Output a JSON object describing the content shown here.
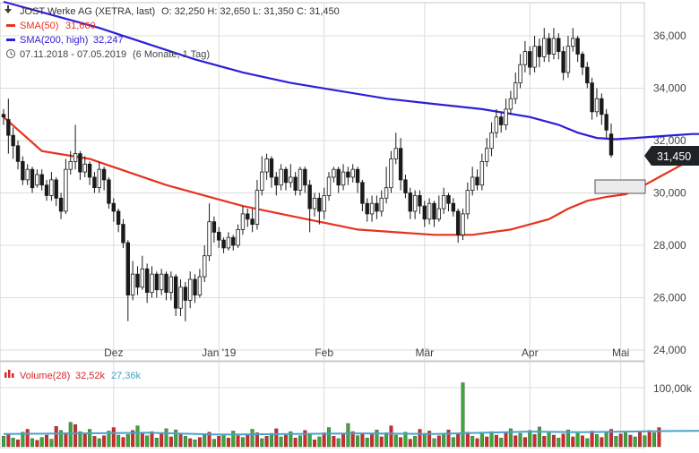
{
  "header": {
    "title": "JOST Werke AG (XETRA, last)",
    "ohlc": "O: 32,250   H: 32,650   L: 31,350   C: 31,450",
    "sma50_label": "SMA(50)",
    "sma50_value": "31,660",
    "sma200_label": "SMA(200, high)",
    "sma200_value": "32,247",
    "range": "07.11.2018 - 07.05.2019",
    "range_note": "(6 Monate, 1 Tag)"
  },
  "colors": {
    "up": "#1a1a1a",
    "down": "#1a1a1a",
    "sma50": "#e8321e",
    "sma200": "#2e1ed8",
    "volume_up": "#3aa832",
    "volume_down": "#d62828",
    "volume_avg": "#4aa3c8",
    "grid": "#dcdcdc",
    "last_badge": "#1f2326"
  },
  "price_panel": {
    "y_ticks": [
      "36,000",
      "34,000",
      "32,000",
      "30,000",
      "28,000",
      "26,000",
      "24,000"
    ],
    "x_ticks": [
      "Dez",
      "Jan '19",
      "Feb",
      "Mär",
      "Apr",
      "Mai"
    ],
    "last_price": "31,450"
  },
  "volume_panel": {
    "label": "Volume(28)",
    "value": "32,52k",
    "avg_value": "27,36k",
    "y_tick": "100,00k"
  },
  "chart_data": {
    "type": "candlestick",
    "ylim": [
      24,
      37
    ],
    "y_ticks": [
      24,
      26,
      28,
      30,
      32,
      34,
      36
    ],
    "x_ticks": [
      "Dez",
      "Jan '19",
      "Feb",
      "Mär",
      "Apr",
      "Mai"
    ],
    "candles": [
      [
        33.0,
        32.9,
        33.2,
        32.6
      ],
      [
        32.8,
        32.2,
        33.6,
        31.5
      ],
      [
        32.2,
        31.8,
        32.5,
        31.3
      ],
      [
        31.8,
        31.2,
        32.0,
        30.9
      ],
      [
        31.2,
        30.5,
        31.4,
        30.3
      ],
      [
        30.5,
        30.9,
        31.1,
        30.3
      ],
      [
        30.9,
        30.2,
        31.0,
        30.0
      ],
      [
        30.3,
        30.7,
        30.9,
        30.2
      ],
      [
        30.7,
        30.3,
        30.9,
        30.1
      ],
      [
        30.3,
        29.9,
        30.5,
        29.7
      ],
      [
        29.9,
        30.5,
        30.8,
        29.7
      ],
      [
        30.5,
        29.8,
        30.6,
        29.5
      ],
      [
        29.8,
        29.3,
        30.0,
        29.0
      ],
      [
        29.3,
        30.9,
        31.3,
        29.2
      ],
      [
        30.9,
        31.2,
        31.6,
        30.7
      ],
      [
        31.2,
        31.5,
        32.6,
        30.9
      ],
      [
        31.5,
        30.8,
        31.6,
        30.5
      ],
      [
        30.8,
        31.1,
        31.4,
        30.6
      ],
      [
        31.1,
        30.6,
        31.2,
        30.3
      ],
      [
        30.6,
        30.2,
        30.8,
        30.0
      ],
      [
        30.2,
        30.9,
        31.2,
        30.0
      ],
      [
        30.9,
        30.5,
        31.0,
        30.1
      ],
      [
        30.5,
        29.6,
        30.6,
        29.4
      ],
      [
        29.6,
        29.3,
        29.8,
        28.9
      ],
      [
        29.3,
        28.8,
        29.4,
        28.5
      ],
      [
        28.8,
        28.1,
        29.0,
        27.9
      ],
      [
        28.1,
        26.1,
        28.2,
        25.1
      ],
      [
        26.1,
        26.9,
        27.4,
        25.9
      ],
      [
        26.9,
        26.4,
        27.2,
        26.1
      ],
      [
        26.4,
        27.1,
        27.6,
        26.3
      ],
      [
        27.1,
        26.2,
        27.3,
        25.8
      ],
      [
        26.2,
        26.9,
        27.2,
        26.0
      ],
      [
        26.9,
        26.3,
        27.0,
        26.0
      ],
      [
        26.3,
        26.9,
        27.1,
        26.1
      ],
      [
        26.9,
        26.2,
        27.0,
        25.9
      ],
      [
        26.2,
        26.8,
        27.0,
        25.9
      ],
      [
        26.8,
        25.6,
        26.9,
        25.3
      ],
      [
        25.6,
        26.4,
        26.7,
        25.3
      ],
      [
        26.4,
        25.9,
        26.6,
        25.1
      ],
      [
        25.9,
        26.7,
        27.0,
        25.6
      ],
      [
        26.7,
        26.1,
        26.9,
        25.8
      ],
      [
        26.1,
        26.8,
        27.1,
        26.0
      ],
      [
        26.8,
        27.6,
        28.0,
        26.6
      ],
      [
        27.6,
        28.9,
        29.6,
        27.4
      ],
      [
        28.9,
        28.5,
        29.1,
        28.1
      ],
      [
        28.5,
        28.2,
        28.7,
        27.9
      ],
      [
        28.2,
        27.9,
        28.3,
        27.7
      ],
      [
        27.9,
        28.3,
        28.5,
        27.8
      ],
      [
        28.3,
        28.0,
        28.4,
        27.8
      ],
      [
        28.0,
        28.6,
        28.8,
        27.9
      ],
      [
        28.6,
        29.2,
        29.5,
        28.4
      ],
      [
        29.2,
        29.0,
        29.4,
        28.7
      ],
      [
        29.0,
        28.8,
        29.4,
        28.5
      ],
      [
        28.8,
        30.1,
        30.5,
        28.6
      ],
      [
        30.1,
        30.8,
        31.4,
        29.9
      ],
      [
        30.8,
        31.3,
        31.5,
        30.5
      ],
      [
        31.3,
        30.6,
        31.4,
        30.2
      ],
      [
        30.6,
        30.3,
        30.8,
        29.9
      ],
      [
        30.3,
        30.9,
        31.1,
        30.1
      ],
      [
        30.9,
        30.4,
        31.0,
        30.1
      ],
      [
        30.4,
        30.6,
        31.1,
        30.2
      ],
      [
        30.6,
        30.1,
        30.8,
        29.9
      ],
      [
        30.1,
        30.9,
        31.0,
        29.9
      ],
      [
        30.9,
        30.3,
        31.0,
        30.0
      ],
      [
        30.3,
        29.4,
        30.5,
        28.5
      ],
      [
        29.4,
        29.8,
        30.0,
        29.1
      ],
      [
        29.8,
        29.3,
        30.0,
        28.8
      ],
      [
        29.3,
        29.9,
        30.2,
        29.0
      ],
      [
        29.9,
        30.6,
        30.8,
        29.7
      ],
      [
        30.6,
        30.9,
        31.0,
        30.4
      ],
      [
        30.9,
        30.3,
        31.0,
        30.0
      ],
      [
        30.3,
        30.8,
        31.1,
        30.1
      ],
      [
        30.8,
        30.6,
        31.0,
        30.3
      ],
      [
        30.6,
        30.9,
        31.1,
        30.4
      ],
      [
        30.9,
        30.4,
        31.0,
        30.0
      ],
      [
        30.4,
        29.6,
        30.5,
        29.3
      ],
      [
        29.6,
        29.2,
        29.8,
        28.9
      ],
      [
        29.2,
        29.6,
        29.9,
        28.9
      ],
      [
        29.6,
        29.3,
        29.9,
        29.0
      ],
      [
        29.3,
        29.8,
        30.1,
        29.1
      ],
      [
        29.8,
        30.2,
        31.0,
        29.6
      ],
      [
        30.2,
        31.3,
        31.6,
        30.0
      ],
      [
        31.3,
        31.7,
        32.3,
        31.1
      ],
      [
        31.7,
        30.5,
        32.1,
        30.1
      ],
      [
        30.5,
        30.0,
        30.7,
        29.8
      ],
      [
        30.0,
        29.3,
        30.2,
        29.0
      ],
      [
        29.3,
        29.9,
        30.1,
        29.0
      ],
      [
        29.9,
        29.5,
        30.1,
        29.2
      ],
      [
        29.5,
        29.0,
        29.7,
        28.7
      ],
      [
        29.0,
        29.6,
        29.8,
        28.8
      ],
      [
        29.6,
        29.0,
        29.7,
        28.7
      ],
      [
        29.0,
        29.4,
        29.9,
        28.9
      ],
      [
        29.4,
        29.9,
        30.2,
        29.2
      ],
      [
        29.9,
        29.6,
        30.0,
        29.3
      ],
      [
        29.6,
        29.3,
        29.8,
        29.1
      ],
      [
        29.3,
        28.4,
        29.4,
        28.1
      ],
      [
        28.4,
        29.2,
        29.4,
        28.2
      ],
      [
        29.2,
        30.1,
        30.4,
        29.0
      ],
      [
        30.1,
        30.6,
        31.0,
        29.9
      ],
      [
        30.6,
        30.3,
        30.9,
        30.1
      ],
      [
        30.3,
        31.2,
        31.5,
        30.1
      ],
      [
        31.2,
        31.7,
        32.1,
        31.0
      ],
      [
        31.7,
        32.3,
        32.7,
        31.4
      ],
      [
        32.3,
        32.9,
        33.2,
        32.1
      ],
      [
        32.9,
        32.6,
        33.1,
        32.3
      ],
      [
        32.6,
        33.2,
        33.6,
        32.4
      ],
      [
        33.2,
        33.6,
        33.9,
        33.0
      ],
      [
        33.6,
        34.2,
        34.6,
        33.4
      ],
      [
        34.2,
        34.9,
        35.3,
        34.0
      ],
      [
        34.9,
        35.4,
        35.8,
        34.6
      ],
      [
        35.4,
        34.8,
        35.6,
        34.5
      ],
      [
        34.8,
        35.6,
        36.0,
        34.6
      ],
      [
        35.6,
        35.2,
        35.9,
        34.8
      ],
      [
        35.2,
        35.9,
        36.3,
        35.0
      ],
      [
        35.9,
        35.3,
        36.1,
        35.0
      ],
      [
        35.3,
        35.9,
        36.3,
        35.1
      ],
      [
        35.9,
        35.4,
        36.1,
        35.1
      ],
      [
        35.4,
        34.6,
        35.6,
        34.3
      ],
      [
        34.6,
        35.6,
        36.0,
        34.4
      ],
      [
        35.6,
        35.9,
        36.3,
        35.4
      ],
      [
        35.9,
        35.3,
        36.0,
        35.0
      ],
      [
        35.3,
        34.8,
        35.4,
        34.5
      ],
      [
        34.8,
        34.2,
        35.0,
        34.0
      ],
      [
        34.2,
        33.1,
        34.4,
        32.8
      ],
      [
        33.1,
        33.6,
        34.0,
        32.9
      ],
      [
        33.6,
        33.0,
        33.8,
        32.6
      ],
      [
        33.0,
        32.4,
        33.2,
        32.1
      ],
      [
        32.25,
        31.45,
        32.65,
        31.35
      ]
    ],
    "sma50": [
      [
        0,
        32.9
      ],
      [
        8,
        31.6
      ],
      [
        18,
        31.3
      ],
      [
        26,
        30.8
      ],
      [
        34,
        30.3
      ],
      [
        42,
        29.9
      ],
      [
        50,
        29.5
      ],
      [
        58,
        29.2
      ],
      [
        66,
        28.9
      ],
      [
        74,
        28.6
      ],
      [
        82,
        28.5
      ],
      [
        90,
        28.4
      ],
      [
        98,
        28.4
      ],
      [
        106,
        28.6
      ],
      [
        114,
        29.0
      ],
      [
        118,
        29.4
      ],
      [
        122,
        29.7
      ],
      [
        126,
        29.85
      ],
      [
        130,
        29.95
      ],
      [
        133,
        30.2
      ],
      [
        137,
        30.6
      ],
      [
        140,
        30.9
      ],
      [
        143,
        31.2
      ],
      [
        146,
        31.5
      ],
      [
        149,
        31.65
      ]
    ],
    "sma200": [
      [
        0,
        37.3
      ],
      [
        10,
        36.8
      ],
      [
        20,
        36.3
      ],
      [
        30,
        35.7
      ],
      [
        40,
        35.1
      ],
      [
        50,
        34.6
      ],
      [
        60,
        34.2
      ],
      [
        70,
        33.9
      ],
      [
        80,
        33.6
      ],
      [
        90,
        33.4
      ],
      [
        100,
        33.2
      ],
      [
        110,
        32.9
      ],
      [
        116,
        32.6
      ],
      [
        120,
        32.3
      ],
      [
        124,
        32.1
      ],
      [
        128,
        32.05
      ],
      [
        132,
        32.1
      ],
      [
        136,
        32.15
      ],
      [
        140,
        32.2
      ],
      [
        144,
        32.25
      ],
      [
        149,
        32.25
      ]
    ],
    "volume": [
      [
        18,
        1
      ],
      [
        22,
        0
      ],
      [
        15,
        1
      ],
      [
        12,
        0
      ],
      [
        25,
        1
      ],
      [
        30,
        0
      ],
      [
        14,
        1
      ],
      [
        11,
        0
      ],
      [
        16,
        1
      ],
      [
        20,
        0
      ],
      [
        13,
        1
      ],
      [
        35,
        0
      ],
      [
        28,
        1
      ],
      [
        24,
        0
      ],
      [
        42,
        1
      ],
      [
        38,
        0
      ],
      [
        26,
        1
      ],
      [
        22,
        0
      ],
      [
        30,
        1
      ],
      [
        18,
        0
      ],
      [
        14,
        1
      ],
      [
        19,
        0
      ],
      [
        27,
        1
      ],
      [
        33,
        0
      ],
      [
        20,
        1
      ],
      [
        16,
        0
      ],
      [
        21,
        1
      ],
      [
        28,
        0
      ],
      [
        36,
        1
      ],
      [
        24,
        0
      ],
      [
        19,
        1
      ],
      [
        26,
        0
      ],
      [
        15,
        1
      ],
      [
        22,
        0
      ],
      [
        31,
        1
      ],
      [
        17,
        0
      ],
      [
        29,
        1
      ],
      [
        23,
        0
      ],
      [
        18,
        1
      ],
      [
        14,
        0
      ],
      [
        12,
        1
      ],
      [
        16,
        0
      ],
      [
        20,
        1
      ],
      [
        25,
        0
      ],
      [
        13,
        1
      ],
      [
        18,
        0
      ],
      [
        21,
        1
      ],
      [
        15,
        0
      ],
      [
        27,
        1
      ],
      [
        19,
        0
      ],
      [
        16,
        1
      ],
      [
        22,
        0
      ],
      [
        30,
        1
      ],
      [
        24,
        0
      ],
      [
        14,
        1
      ],
      [
        18,
        0
      ],
      [
        23,
        1
      ],
      [
        31,
        0
      ],
      [
        17,
        1
      ],
      [
        20,
        0
      ],
      [
        26,
        1
      ],
      [
        15,
        0
      ],
      [
        19,
        1
      ],
      [
        28,
        0
      ],
      [
        21,
        1
      ],
      [
        12,
        0
      ],
      [
        17,
        1
      ],
      [
        24,
        0
      ],
      [
        33,
        1
      ],
      [
        18,
        0
      ],
      [
        14,
        1
      ],
      [
        22,
        0
      ],
      [
        40,
        1
      ],
      [
        26,
        0
      ],
      [
        19,
        1
      ],
      [
        23,
        0
      ],
      [
        15,
        1
      ],
      [
        21,
        0
      ],
      [
        29,
        1
      ],
      [
        17,
        0
      ],
      [
        24,
        1
      ],
      [
        36,
        0
      ],
      [
        20,
        1
      ],
      [
        16,
        0
      ],
      [
        25,
        1
      ],
      [
        13,
        0
      ],
      [
        18,
        1
      ],
      [
        30,
        0
      ],
      [
        22,
        1
      ],
      [
        27,
        0
      ],
      [
        14,
        1
      ],
      [
        19,
        0
      ],
      [
        23,
        1
      ],
      [
        29,
        0
      ],
      [
        16,
        1
      ],
      [
        21,
        0
      ],
      [
        110,
        1
      ],
      [
        25,
        0
      ],
      [
        18,
        1
      ],
      [
        14,
        0
      ],
      [
        22,
        1
      ],
      [
        17,
        0
      ],
      [
        26,
        1
      ],
      [
        20,
        0
      ],
      [
        15,
        1
      ],
      [
        24,
        0
      ],
      [
        31,
        1
      ],
      [
        19,
        0
      ],
      [
        23,
        1
      ],
      [
        16,
        0
      ],
      [
        28,
        1
      ],
      [
        21,
        0
      ],
      [
        34,
        1
      ],
      [
        18,
        0
      ],
      [
        25,
        1
      ],
      [
        20,
        0
      ],
      [
        15,
        1
      ],
      [
        22,
        0
      ],
      [
        29,
        1
      ],
      [
        17,
        0
      ],
      [
        23,
        1
      ],
      [
        19,
        0
      ],
      [
        14,
        1
      ],
      [
        27,
        0
      ],
      [
        21,
        1
      ],
      [
        16,
        0
      ],
      [
        24,
        1
      ],
      [
        30,
        0
      ],
      [
        18,
        1
      ],
      [
        22,
        0
      ],
      [
        26,
        1
      ],
      [
        20,
        0
      ],
      [
        17,
        1
      ],
      [
        25,
        0
      ],
      [
        19,
        1
      ],
      [
        28,
        0
      ],
      [
        24,
        1
      ],
      [
        33,
        0
      ]
    ],
    "volume_avg": [
      [
        0,
        22
      ],
      [
        15,
        23
      ],
      [
        30,
        24
      ],
      [
        45,
        21
      ],
      [
        60,
        22
      ],
      [
        75,
        23
      ],
      [
        90,
        22
      ],
      [
        100,
        24
      ],
      [
        110,
        26
      ],
      [
        120,
        25
      ],
      [
        130,
        26
      ],
      [
        140,
        27
      ],
      [
        149,
        27.4
      ]
    ],
    "volume_ylim": [
      0,
      125
    ]
  }
}
